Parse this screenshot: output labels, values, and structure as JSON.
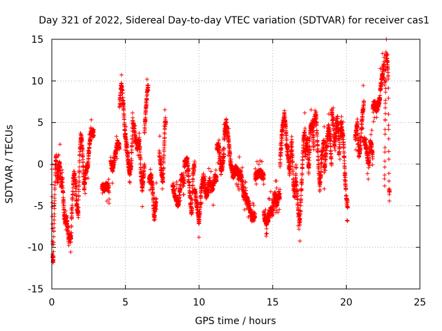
{
  "chart_data": {
    "type": "scatter",
    "title": "Day 321 of 2022, Sidereal Day-to-day VTEC variation (SDTVAR) for receiver cas1",
    "xlabel": "GPS time / hours",
    "ylabel": "SDTVAR / TECUs",
    "xlim": [
      0,
      25
    ],
    "ylim": [
      -15,
      15
    ],
    "xticks": [
      0,
      5,
      10,
      15,
      20,
      25
    ],
    "yticks": [
      -15,
      -10,
      -5,
      0,
      5,
      10,
      15
    ],
    "xtick_labels": [
      "0",
      "5",
      "10",
      "15",
      "20",
      "25"
    ],
    "ytick_labels": [
      "-15",
      "-10",
      "-5",
      "0",
      "5",
      "10",
      "15"
    ],
    "grid": true,
    "marker": "plus",
    "series_color": "#ff0000",
    "segments": [
      {
        "start": 0.0,
        "end": 0.45,
        "pts": [
          [
            0.0,
            -1
          ],
          [
            0.05,
            -11
          ],
          [
            0.1,
            -12
          ],
          [
            0.15,
            -7
          ],
          [
            0.2,
            -4
          ],
          [
            0.25,
            0
          ],
          [
            0.3,
            1
          ],
          [
            0.35,
            -1.5
          ],
          [
            0.4,
            -2
          ],
          [
            0.45,
            -0.5
          ]
        ]
      },
      {
        "start": 0.45,
        "end": 0.9,
        "pts": [
          [
            0.45,
            -0.5
          ],
          [
            0.55,
            0
          ],
          [
            0.65,
            -3
          ],
          [
            0.7,
            -1
          ],
          [
            0.8,
            -5
          ],
          [
            0.9,
            -7
          ]
        ]
      },
      {
        "start": 0.9,
        "end": 1.3,
        "pts": [
          [
            0.9,
            -7
          ],
          [
            1.0,
            -6.5
          ],
          [
            1.1,
            -8
          ],
          [
            1.15,
            -9.5
          ],
          [
            1.2,
            -8.5
          ],
          [
            1.3,
            -9
          ]
        ]
      },
      {
        "start": 1.3,
        "end": 1.8,
        "pts": [
          [
            1.3,
            -9
          ],
          [
            1.4,
            -4
          ],
          [
            1.5,
            -1
          ],
          [
            1.6,
            -2
          ],
          [
            1.7,
            -5
          ],
          [
            1.8,
            -6
          ]
        ]
      },
      {
        "start": 1.8,
        "end": 2.3,
        "pts": [
          [
            1.8,
            -6
          ],
          [
            1.9,
            1.5
          ],
          [
            2.0,
            3.5
          ],
          [
            2.1,
            1
          ],
          [
            2.2,
            -3
          ],
          [
            2.3,
            -1
          ]
        ]
      },
      {
        "start": 2.3,
        "end": 2.85,
        "pts": [
          [
            2.3,
            -1
          ],
          [
            2.45,
            0
          ],
          [
            2.55,
            2
          ],
          [
            2.65,
            4
          ],
          [
            2.75,
            3.5
          ],
          [
            2.85,
            3.8
          ]
        ]
      },
      {
        "start": 3.4,
        "end": 3.9,
        "pts": [
          [
            3.4,
            -2.5
          ],
          [
            3.55,
            -3
          ],
          [
            3.7,
            -2.6
          ],
          [
            3.9,
            -3
          ]
        ]
      },
      {
        "start": 4.0,
        "end": 4.6,
        "pts": [
          [
            4.0,
            0
          ],
          [
            4.15,
            -0.5
          ],
          [
            4.3,
            1
          ],
          [
            4.45,
            2.5
          ],
          [
            4.6,
            2
          ]
        ]
      },
      {
        "start": 4.6,
        "end": 4.95,
        "pts": [
          [
            4.6,
            7
          ],
          [
            4.7,
            9.5
          ],
          [
            4.8,
            8.5
          ],
          [
            4.9,
            6
          ],
          [
            4.95,
            4
          ]
        ]
      },
      {
        "start": 4.95,
        "end": 5.6,
        "pts": [
          [
            4.95,
            4
          ],
          [
            5.1,
            2
          ],
          [
            5.2,
            0
          ],
          [
            5.3,
            -1
          ],
          [
            5.4,
            0
          ],
          [
            5.5,
            5.5
          ],
          [
            5.6,
            4
          ]
        ]
      },
      {
        "start": 5.6,
        "end": 6.3,
        "pts": [
          [
            5.6,
            4
          ],
          [
            5.8,
            2
          ],
          [
            5.95,
            3
          ],
          [
            6.05,
            -1
          ],
          [
            6.15,
            -3
          ],
          [
            6.3,
            0
          ]
        ]
      },
      {
        "start": 6.3,
        "end": 6.55,
        "pts": [
          [
            6.3,
            4
          ],
          [
            6.4,
            7
          ],
          [
            6.5,
            9
          ],
          [
            6.55,
            9.2
          ]
        ]
      },
      {
        "start": 6.6,
        "end": 7.1,
        "pts": [
          [
            6.6,
            -2
          ],
          [
            6.75,
            -1.5
          ],
          [
            6.85,
            -3
          ],
          [
            6.95,
            -6.5
          ],
          [
            7.1,
            -4
          ]
        ]
      },
      {
        "start": 7.3,
        "end": 7.75,
        "pts": [
          [
            7.3,
            1.5
          ],
          [
            7.45,
            -1
          ],
          [
            7.55,
            -2
          ],
          [
            7.7,
            5.3
          ],
          [
            7.75,
            4.5
          ]
        ]
      },
      {
        "start": 8.2,
        "end": 9.0,
        "pts": [
          [
            8.2,
            -2.5
          ],
          [
            8.4,
            -4
          ],
          [
            8.6,
            -5
          ],
          [
            8.8,
            -1.5
          ],
          [
            9.0,
            -2
          ]
        ]
      },
      {
        "start": 9.0,
        "end": 9.7,
        "pts": [
          [
            9.0,
            0
          ],
          [
            9.2,
            0.5
          ],
          [
            9.4,
            -4
          ],
          [
            9.5,
            -6
          ],
          [
            9.6,
            -1
          ],
          [
            9.7,
            0
          ]
        ]
      },
      {
        "start": 9.7,
        "end": 10.5,
        "pts": [
          [
            9.7,
            -3
          ],
          [
            9.85,
            -5
          ],
          [
            10.0,
            -7
          ],
          [
            10.15,
            -3
          ],
          [
            10.3,
            -1.5
          ],
          [
            10.5,
            -4
          ]
        ]
      },
      {
        "start": 10.5,
        "end": 11.2,
        "pts": [
          [
            10.5,
            -4
          ],
          [
            10.7,
            -2
          ],
          [
            10.9,
            -3
          ],
          [
            11.1,
            -1.5
          ],
          [
            11.2,
            -2
          ]
        ]
      },
      {
        "start": 11.2,
        "end": 11.7,
        "pts": [
          [
            11.2,
            2
          ],
          [
            11.35,
            2.2
          ],
          [
            11.5,
            -1
          ],
          [
            11.6,
            0
          ],
          [
            11.7,
            1.5
          ]
        ]
      },
      {
        "start": 11.7,
        "end": 12.3,
        "pts": [
          [
            11.7,
            3
          ],
          [
            11.85,
            5
          ],
          [
            12.0,
            3
          ],
          [
            12.15,
            0
          ],
          [
            12.3,
            -1
          ]
        ]
      },
      {
        "start": 12.3,
        "end": 13.0,
        "pts": [
          [
            12.3,
            -1.5
          ],
          [
            12.5,
            -0.5
          ],
          [
            12.7,
            -1.5
          ],
          [
            12.85,
            -1.2
          ],
          [
            13.0,
            -3
          ]
        ]
      },
      {
        "start": 13.0,
        "end": 13.8,
        "pts": [
          [
            13.0,
            -3.5
          ],
          [
            13.2,
            -4
          ],
          [
            13.4,
            -5
          ],
          [
            13.6,
            -6.5
          ],
          [
            13.8,
            -6
          ]
        ]
      },
      {
        "start": 13.8,
        "end": 14.4,
        "pts": [
          [
            13.8,
            -1.5
          ],
          [
            13.95,
            -1.3
          ],
          [
            14.1,
            -1
          ],
          [
            14.25,
            -1.2
          ],
          [
            14.4,
            -1.5
          ]
        ]
      },
      {
        "start": 14.4,
        "end": 15.0,
        "pts": [
          [
            14.4,
            -6
          ],
          [
            14.55,
            -7
          ],
          [
            14.7,
            -6.5
          ],
          [
            14.85,
            -5.5
          ],
          [
            15.0,
            -6
          ]
        ]
      },
      {
        "start": 15.0,
        "end": 15.5,
        "pts": [
          [
            15.0,
            -5.5
          ],
          [
            15.15,
            -3.5
          ],
          [
            15.3,
            -5
          ],
          [
            15.4,
            -3.5
          ],
          [
            15.5,
            -4
          ]
        ]
      },
      {
        "start": 15.5,
        "end": 16.0,
        "pts": [
          [
            15.5,
            0
          ],
          [
            15.6,
            3
          ],
          [
            15.7,
            5
          ],
          [
            15.8,
            6
          ],
          [
            15.9,
            4
          ],
          [
            16.0,
            1
          ]
        ]
      },
      {
        "start": 16.0,
        "end": 16.6,
        "pts": [
          [
            16.0,
            2
          ],
          [
            16.15,
            -1
          ],
          [
            16.3,
            3
          ],
          [
            16.4,
            -2
          ],
          [
            16.5,
            -4
          ],
          [
            16.6,
            0
          ]
        ]
      },
      {
        "start": 16.6,
        "end": 17.2,
        "pts": [
          [
            16.6,
            -2
          ],
          [
            16.75,
            -6
          ],
          [
            16.85,
            -7
          ],
          [
            16.95,
            -3
          ],
          [
            17.1,
            3
          ],
          [
            17.2,
            4
          ]
        ]
      },
      {
        "start": 17.2,
        "end": 17.8,
        "pts": [
          [
            17.2,
            1
          ],
          [
            17.35,
            3
          ],
          [
            17.45,
            -1
          ],
          [
            17.55,
            4
          ],
          [
            17.7,
            5
          ],
          [
            17.8,
            2
          ]
        ]
      },
      {
        "start": 17.8,
        "end": 18.5,
        "pts": [
          [
            17.8,
            5
          ],
          [
            17.95,
            6
          ],
          [
            18.05,
            2
          ],
          [
            18.2,
            -3
          ],
          [
            18.35,
            1
          ],
          [
            18.5,
            3
          ]
        ]
      },
      {
        "start": 18.5,
        "end": 19.0,
        "pts": [
          [
            18.5,
            -1
          ],
          [
            18.6,
            1
          ],
          [
            18.7,
            3
          ],
          [
            18.8,
            4.5
          ],
          [
            18.9,
            3
          ],
          [
            19.0,
            0
          ]
        ]
      },
      {
        "start": 19.0,
        "end": 19.5,
        "pts": [
          [
            19.0,
            6.5
          ],
          [
            19.1,
            5
          ],
          [
            19.2,
            2
          ],
          [
            19.3,
            4
          ],
          [
            19.4,
            5.5
          ],
          [
            19.5,
            3
          ]
        ]
      },
      {
        "start": 19.5,
        "end": 20.1,
        "pts": [
          [
            19.5,
            1
          ],
          [
            19.65,
            5
          ],
          [
            19.8,
            3
          ],
          [
            19.9,
            -1
          ],
          [
            20.0,
            -4
          ],
          [
            20.1,
            -5
          ]
        ]
      },
      {
        "start": 20.6,
        "end": 21.2,
        "pts": [
          [
            20.6,
            3
          ],
          [
            20.75,
            5
          ],
          [
            20.85,
            1
          ],
          [
            20.95,
            2
          ],
          [
            21.1,
            6
          ],
          [
            21.2,
            7.5
          ]
        ]
      },
      {
        "start": 21.2,
        "end": 21.8,
        "pts": [
          [
            21.2,
            3
          ],
          [
            21.35,
            2
          ],
          [
            21.5,
            0
          ],
          [
            21.65,
            3
          ],
          [
            21.8,
            1
          ]
        ]
      },
      {
        "start": 21.8,
        "end": 22.3,
        "pts": [
          [
            21.8,
            7
          ],
          [
            21.95,
            7.2
          ],
          [
            22.05,
            6.5
          ],
          [
            22.15,
            7
          ],
          [
            22.3,
            8
          ]
        ]
      },
      {
        "start": 22.3,
        "end": 22.6,
        "pts": [
          [
            22.3,
            9
          ],
          [
            22.4,
            10
          ],
          [
            22.5,
            11.5
          ],
          [
            22.55,
            12
          ],
          [
            22.6,
            9
          ]
        ]
      },
      {
        "start": 22.6,
        "end": 22.95,
        "pts": [
          [
            22.6,
            -2
          ],
          [
            22.7,
            13.3
          ],
          [
            22.8,
            12
          ],
          [
            22.85,
            10.5
          ],
          [
            22.9,
            -3
          ],
          [
            22.95,
            -3.5
          ]
        ]
      }
    ]
  }
}
